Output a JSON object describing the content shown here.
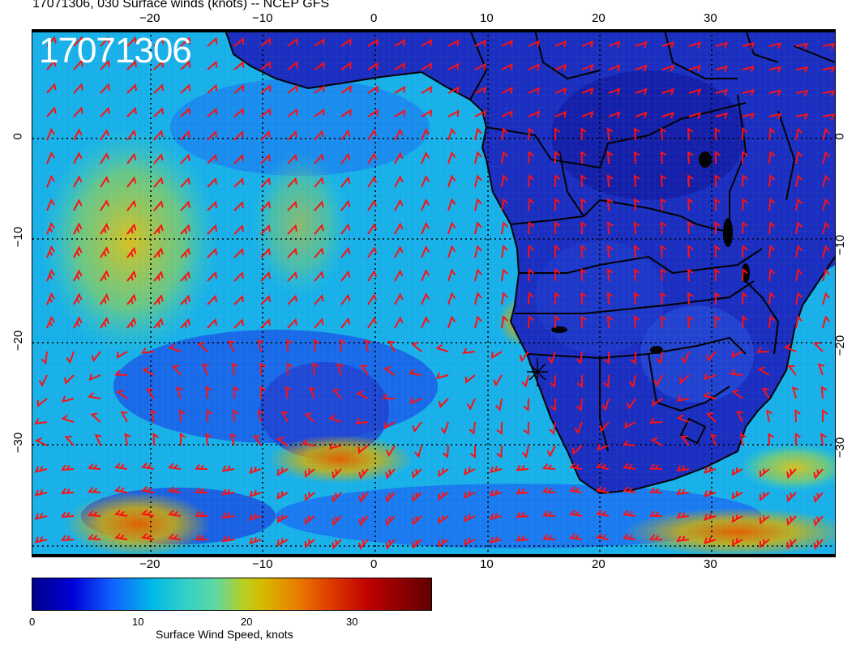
{
  "header": {
    "title": "17071306, 030 Surface winds (knots) -- NCEP GFS",
    "date_stamp": "17071306"
  },
  "map": {
    "lon_labels": [
      "−20",
      "−10",
      "0",
      "10",
      "20",
      "30"
    ],
    "lat_labels": [
      "0",
      "−10",
      "−20",
      "−30"
    ],
    "colors": {
      "wind_barb": "#ff1010",
      "coastline": "#000000",
      "ocean_low": "#1060ff",
      "ocean_mid": "#00b8e8",
      "ocean_high": "#b8d020",
      "land": "#1828c8"
    }
  },
  "colorbar": {
    "title": "Surface Wind Speed, knots",
    "ticks": [
      "0",
      "10",
      "20",
      "30"
    ]
  }
}
